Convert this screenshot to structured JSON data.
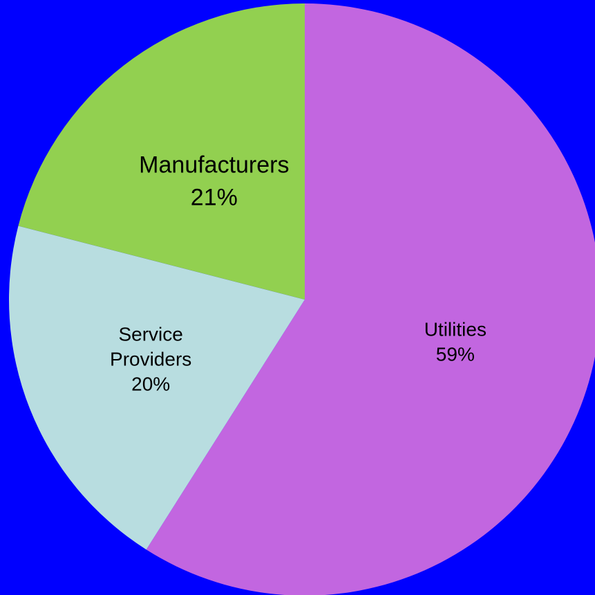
{
  "chart_data": {
    "type": "pie",
    "title": "",
    "background_color": "#0000ff",
    "start_angle_deg": 0,
    "direction": "clockwise",
    "slices": [
      {
        "label_lines": [
          "Utilities"
        ],
        "value": 59,
        "percent_label": "59%",
        "color": "#c266e0"
      },
      {
        "label_lines": [
          "Service",
          "Providers"
        ],
        "value": 20,
        "percent_label": "20%",
        "color": "#b8dde0"
      },
      {
        "label_lines": [
          "Manufacturers"
        ],
        "value": 21,
        "percent_label": "21%",
        "color": "#92d050"
      }
    ]
  }
}
